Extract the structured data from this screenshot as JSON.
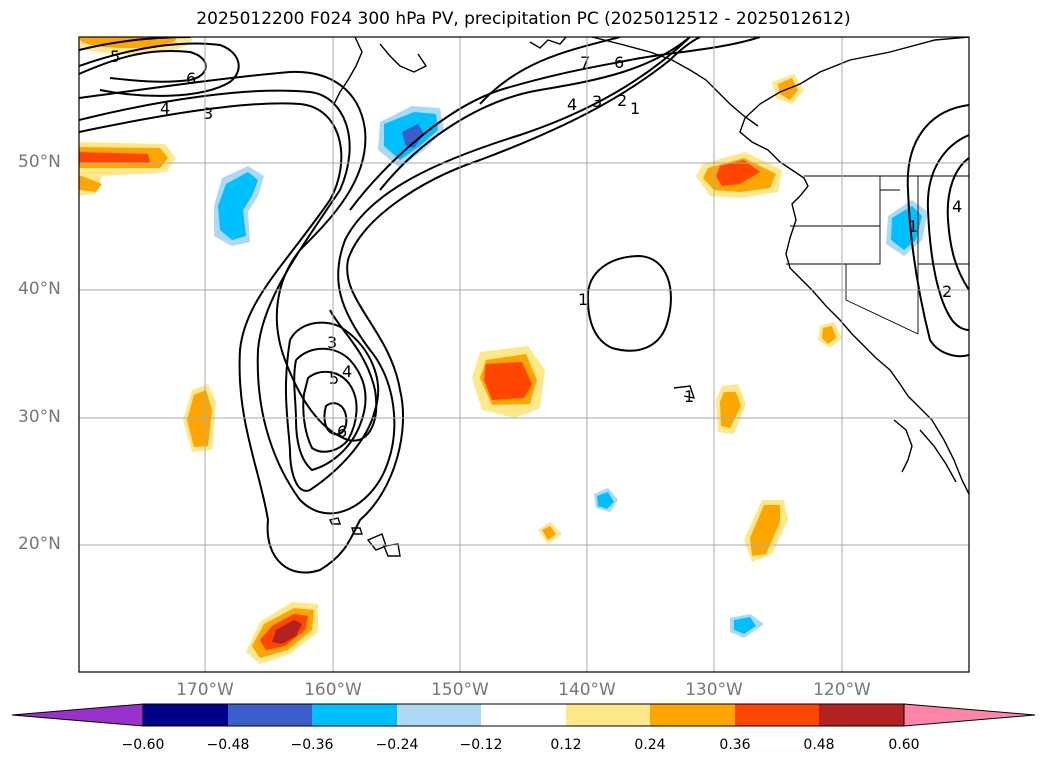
{
  "title": "2025012200 F024 300 hPa PV, precipitation PC (2025012512 - 2025012612)",
  "map": {
    "lat_labels": [
      "50°N",
      "40°N",
      "30°N",
      "20°N"
    ],
    "lon_labels": [
      "170°W",
      "160°W",
      "150°W",
      "140°W",
      "130°W",
      "120°W"
    ],
    "gridlines": true
  },
  "pv_contour_labels": [
    "5",
    "6",
    "4",
    "3",
    "7",
    "6",
    "4",
    "3",
    "2",
    "1",
    "1",
    "3",
    "4",
    "5",
    "6",
    "1",
    "1",
    "4",
    "2"
  ],
  "colorbar": {
    "ticks": [
      "−0.60",
      "−0.48",
      "−0.36",
      "−0.24",
      "−0.12",
      "0.12",
      "0.24",
      "0.36",
      "0.48",
      "0.60"
    ],
    "colors": [
      "#9932cc",
      "#00008b",
      "#3a5fcd",
      "#00bfff",
      "#add8f6",
      "#ffffff",
      "#ffe88a",
      "#ffa500",
      "#ff4500",
      "#b22222",
      "#ff85a8"
    ],
    "extend": "both"
  }
}
